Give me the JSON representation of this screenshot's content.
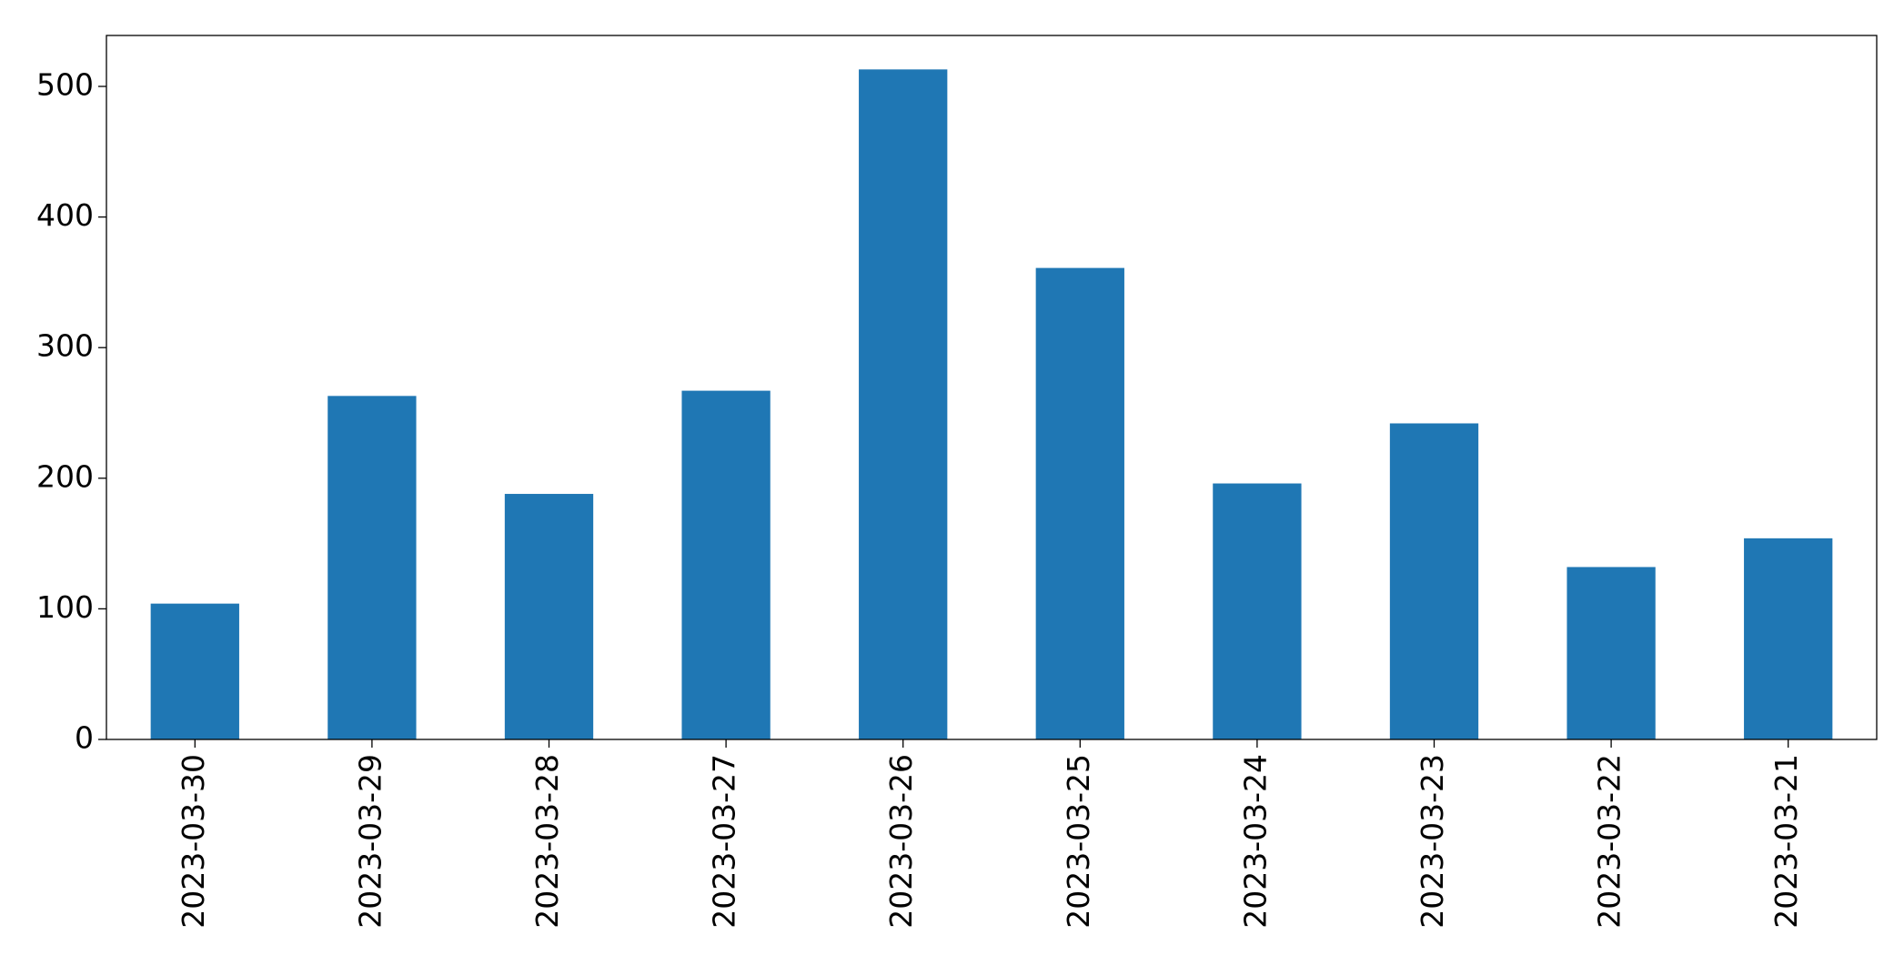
{
  "chart_data": {
    "type": "bar",
    "categories": [
      "2023-03-30",
      "2023-03-29",
      "2023-03-28",
      "2023-03-27",
      "2023-03-26",
      "2023-03-25",
      "2023-03-24",
      "2023-03-23",
      "2023-03-22",
      "2023-03-21"
    ],
    "values": [
      104,
      263,
      188,
      267,
      513,
      361,
      196,
      242,
      132,
      154
    ],
    "color": "#1f77b4",
    "ylim": [
      0,
      539
    ],
    "yticks": [
      0,
      100,
      200,
      300,
      400,
      500
    ],
    "grid": false
  }
}
